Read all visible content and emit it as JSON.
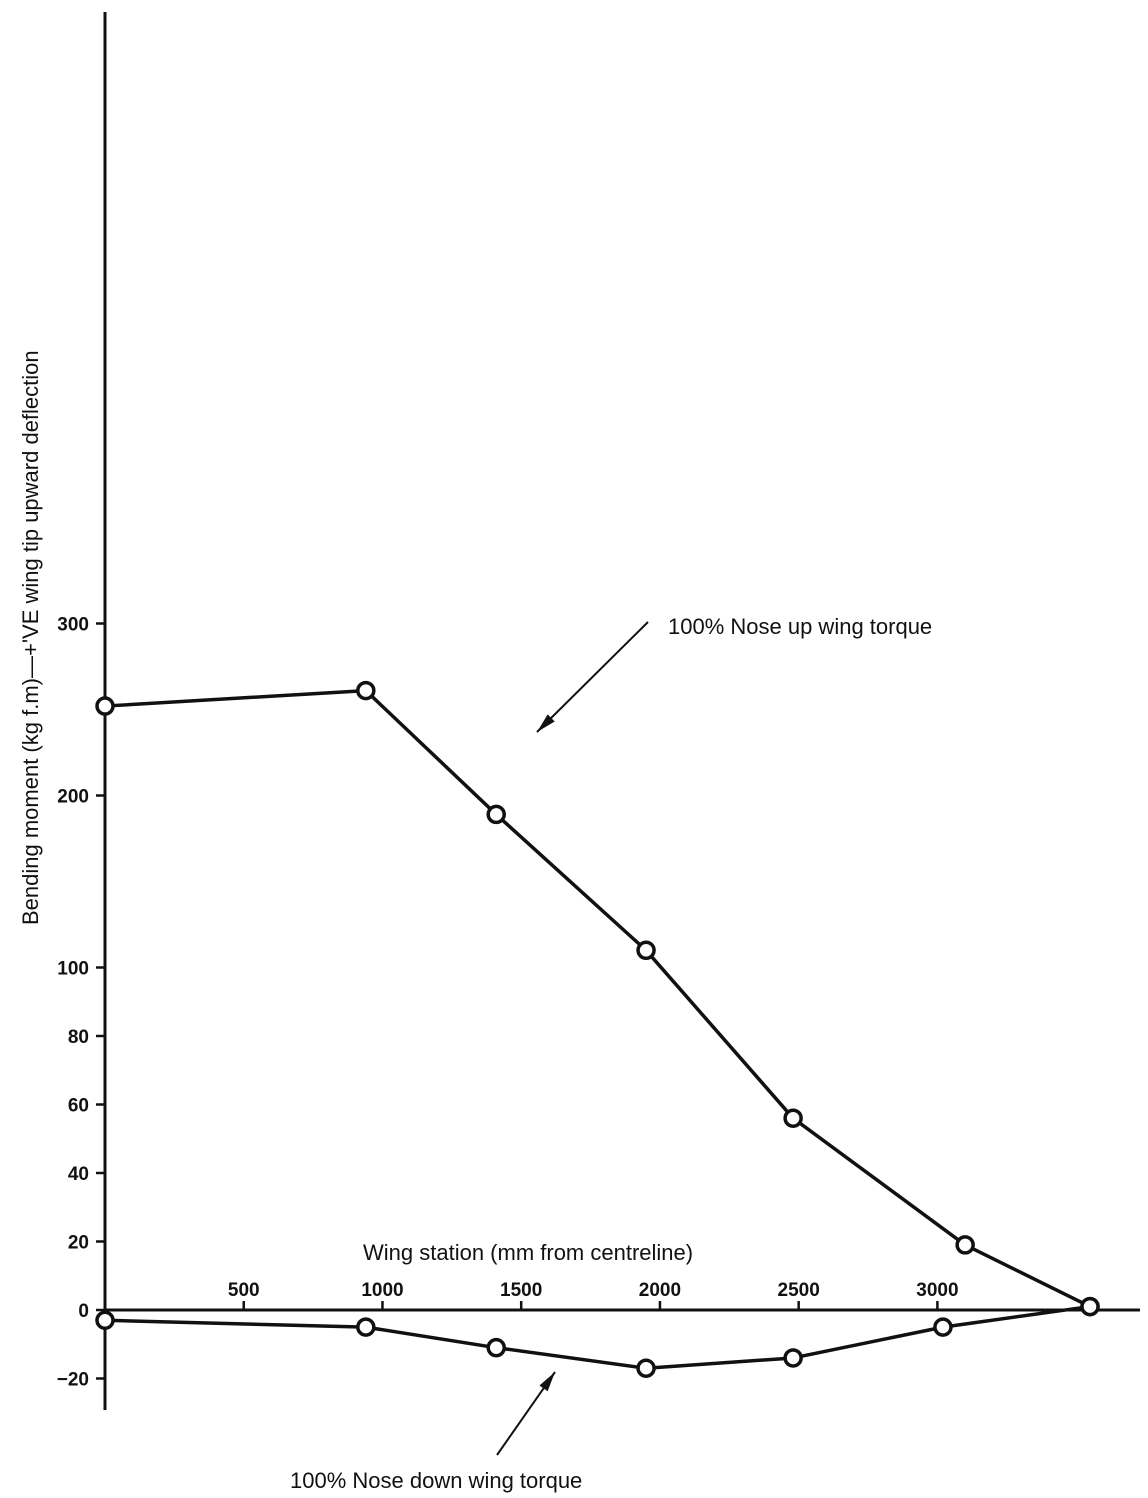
{
  "chart_data": {
    "type": "line",
    "title": "",
    "xlabel": "Wing station (mm from centreline)",
    "ylabel": "Bending moment (kg f.m)—+'VE wing tip upward deflection",
    "xlim": [
      0,
      3700
    ],
    "x_ticks": [
      500,
      1000,
      1500,
      2000,
      2500,
      3000
    ],
    "y_ticks": [
      -20,
      0,
      20,
      40,
      60,
      80,
      100,
      200,
      300
    ],
    "y_scale": "piecewise-linear: 0-100 uses double scale vs 100-300",
    "grid": false,
    "legend": "none",
    "series": [
      {
        "name": "100% Nose up wing torque",
        "points": [
          {
            "x": 0,
            "y": 252
          },
          {
            "x": 940,
            "y": 261
          },
          {
            "x": 1410,
            "y": 189
          },
          {
            "x": 1950,
            "y": 110
          },
          {
            "x": 2480,
            "y": 56
          },
          {
            "x": 3100,
            "y": 19
          },
          {
            "x": 3550,
            "y": 1
          }
        ]
      },
      {
        "name": "100% Nose down wing torque",
        "points": [
          {
            "x": 0,
            "y": -3
          },
          {
            "x": 940,
            "y": -5
          },
          {
            "x": 1410,
            "y": -11
          },
          {
            "x": 1950,
            "y": -17
          },
          {
            "x": 2480,
            "y": -14
          },
          {
            "x": 3020,
            "y": -5
          },
          {
            "x": 3550,
            "y": 1
          }
        ]
      }
    ],
    "annotations": [
      {
        "text": "100% Nose up wing torque",
        "series": 0
      },
      {
        "text": "100% Nose down wing torque",
        "series": 1
      }
    ]
  }
}
